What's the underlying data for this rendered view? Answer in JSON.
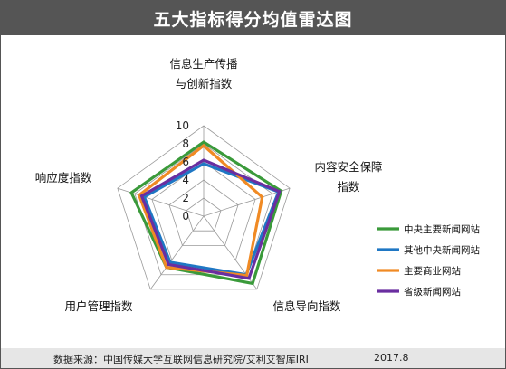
{
  "title": "五大指标得分均值雷达图",
  "footer": {
    "source": "数据来源：中国传媒大学互联网信息研究院/艾利艾智库IRI",
    "date": "2017.8"
  },
  "chart_data": {
    "type": "radar",
    "axes": [
      [
        "信息生产传播",
        "与创新指数"
      ],
      [
        "内容安全保障",
        "指数"
      ],
      [
        "信息导向指数"
      ],
      [
        "用户管理指数"
      ],
      [
        "响应度指数"
      ]
    ],
    "rlim": [
      0,
      10
    ],
    "ticks": [
      "0",
      "2",
      "4",
      "6",
      "8",
      "10"
    ],
    "legend_position": "right",
    "series": [
      {
        "name": "中央主要新闻网站",
        "color": "#3a9a3a",
        "values": [
          8.2,
          9.0,
          9.2,
          7.0,
          8.4
        ]
      },
      {
        "name": "其他中央新闻网站",
        "color": "#1f77c4",
        "values": [
          5.8,
          8.7,
          8.0,
          6.3,
          6.9
        ]
      },
      {
        "name": "主要商业网站",
        "color": "#f08a24",
        "values": [
          7.8,
          6.8,
          8.1,
          7.0,
          7.5
        ]
      },
      {
        "name": "省级新闻网站",
        "color": "#6a2ea0",
        "values": [
          6.2,
          8.8,
          8.5,
          6.6,
          7.2
        ]
      }
    ]
  }
}
